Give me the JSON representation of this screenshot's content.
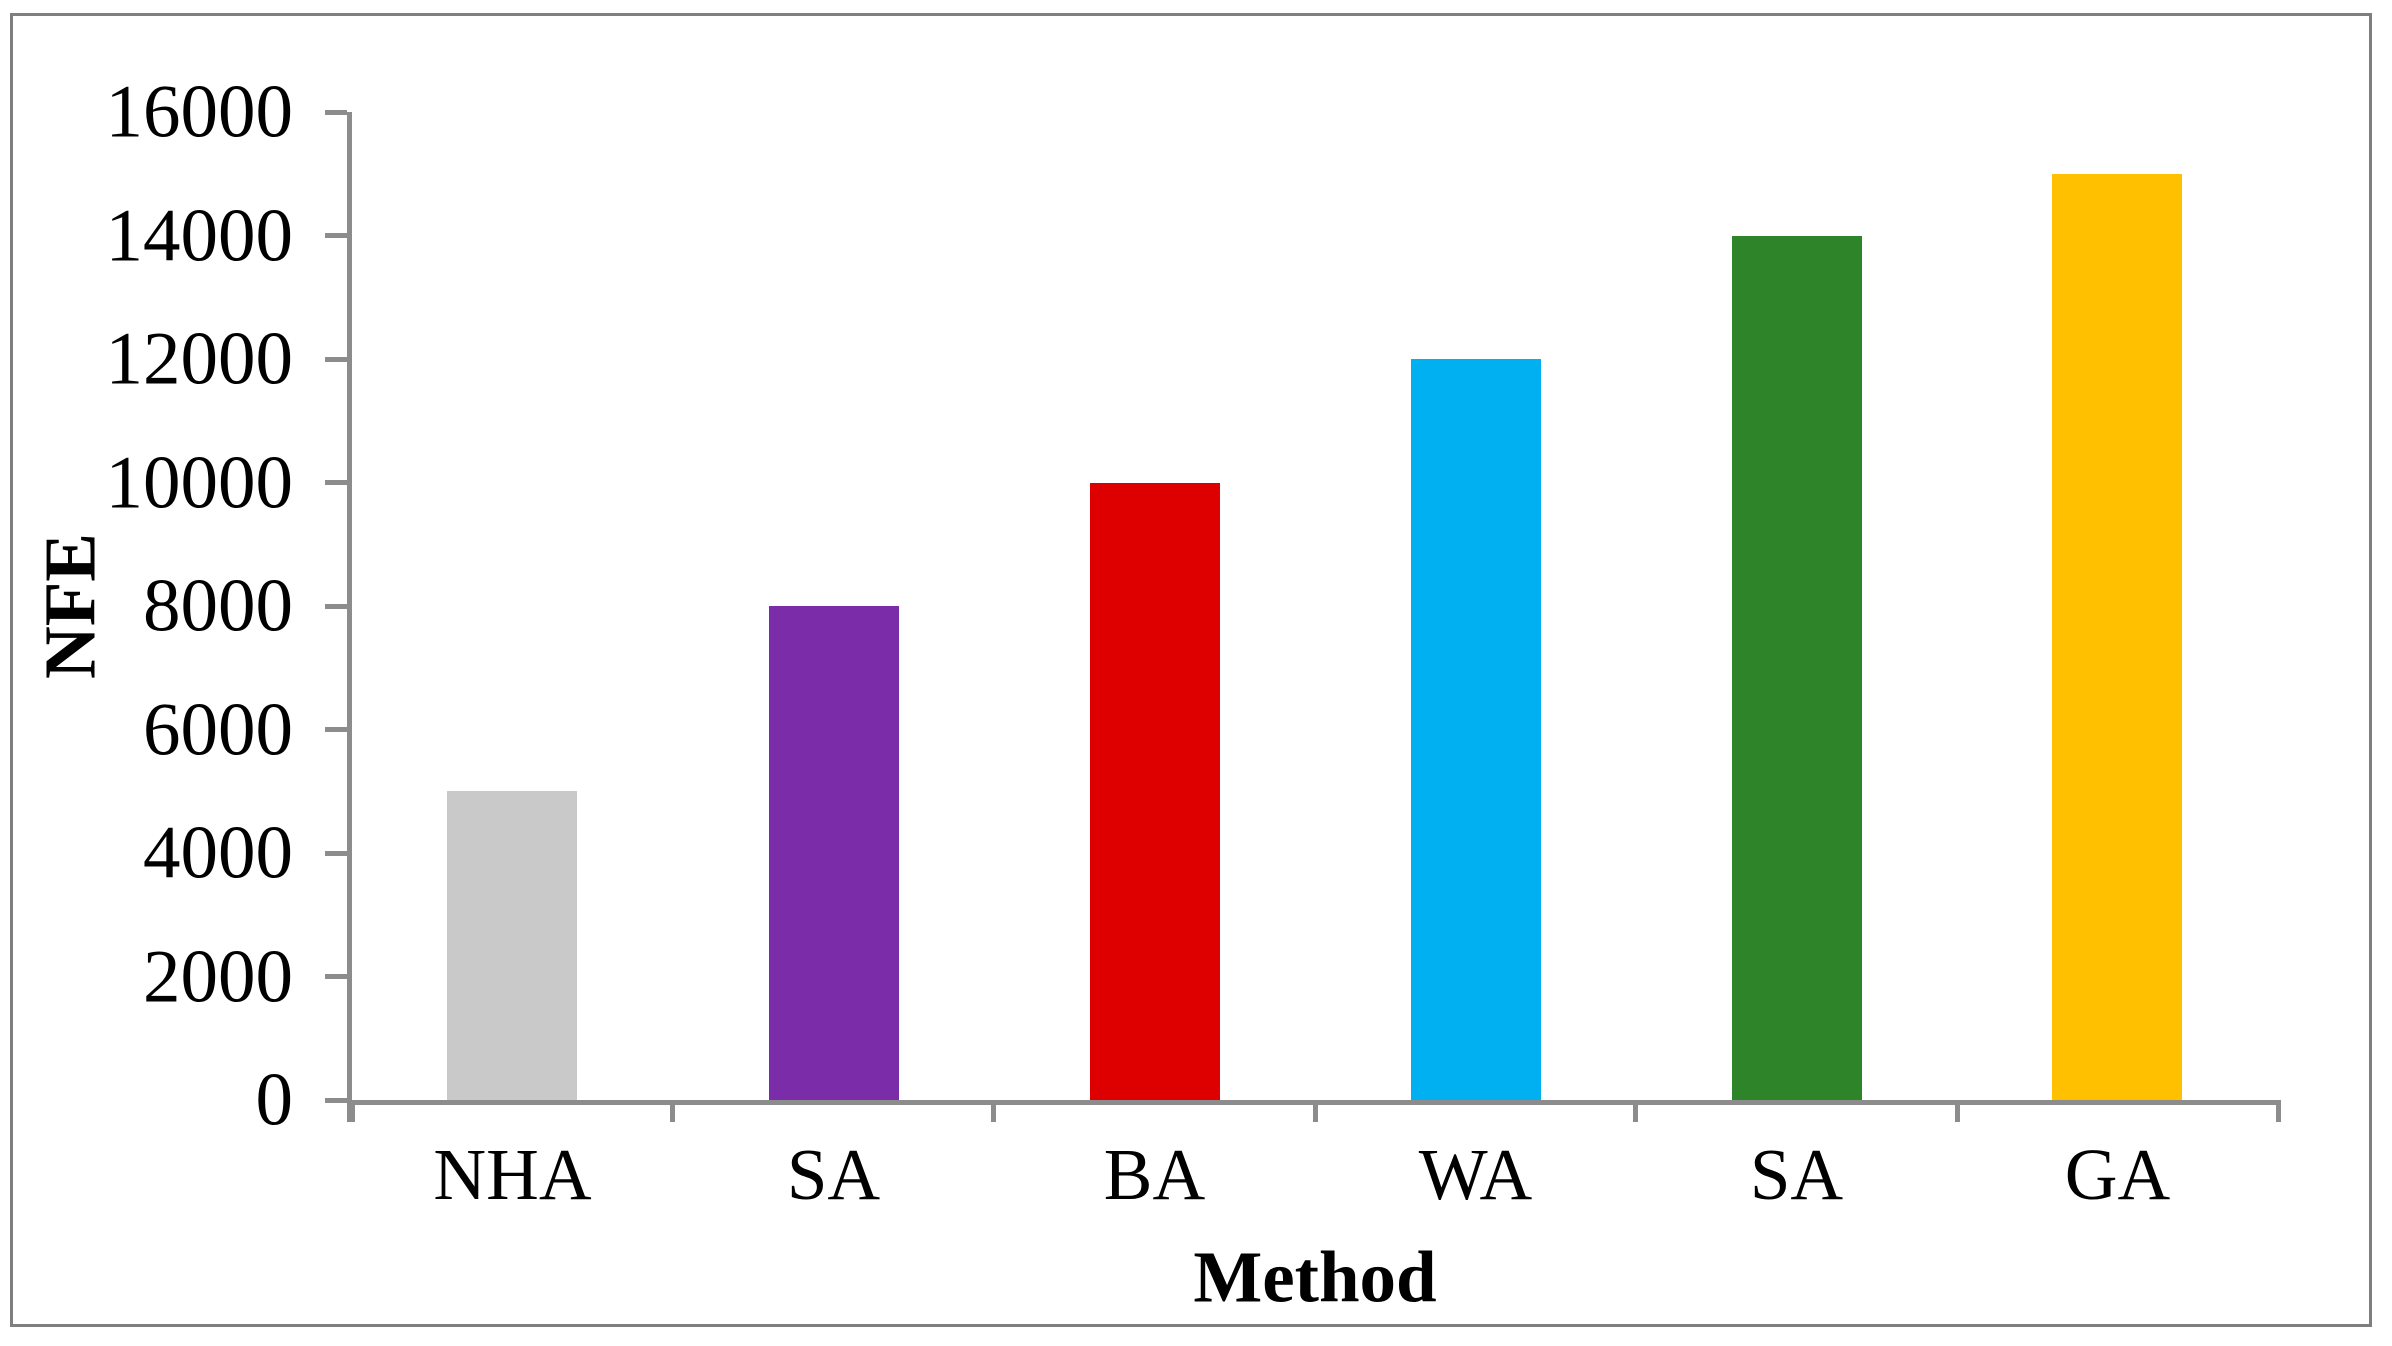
{
  "figure": {
    "background": "#FFFFFF",
    "border_color": "#7F7F7F"
  },
  "chart_data": {
    "type": "bar",
    "xlabel": "Method",
    "ylabel": "NFE",
    "categories": [
      "NHA",
      "SA",
      "BA",
      "WA",
      "SA",
      "GA"
    ],
    "values": [
      5000,
      8000,
      10000,
      12000,
      14000,
      15000
    ],
    "bar_colors": [
      "#C9C9C9",
      "#7B2CA8",
      "#DE0000",
      "#00B0F0",
      "#2E8428",
      "#FFC000"
    ],
    "ylim": [
      0,
      16000
    ],
    "yticks": [
      0,
      2000,
      4000,
      6000,
      8000,
      10000,
      12000,
      14000,
      16000
    ],
    "axis_color": "#8C8C8C",
    "text_color": "#000000",
    "grid": false,
    "legend_position": "none"
  }
}
